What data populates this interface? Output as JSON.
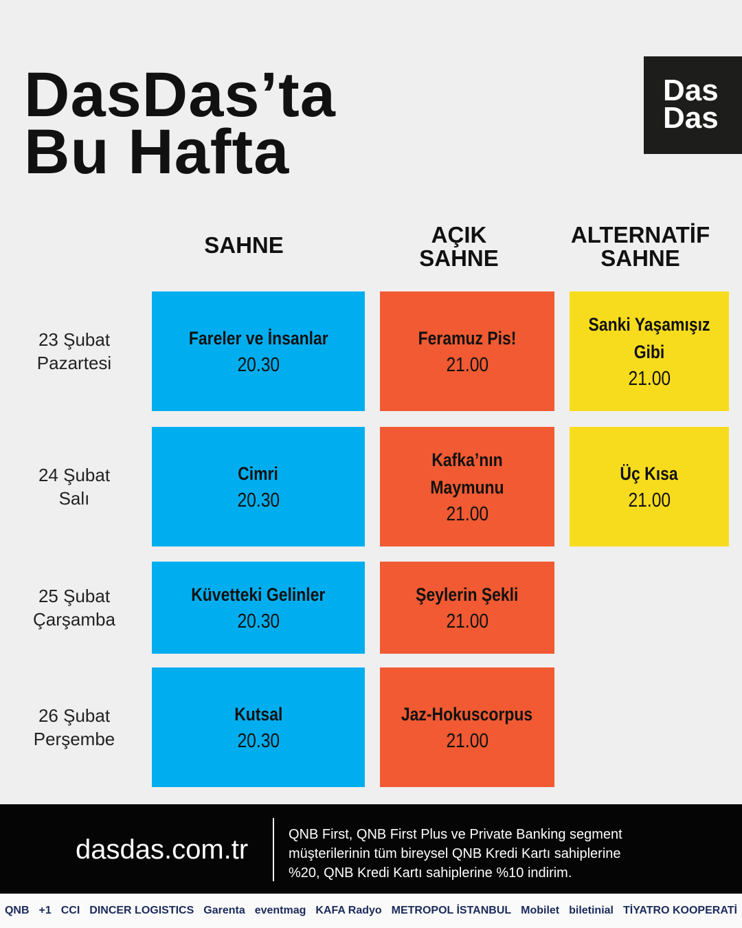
{
  "header": {
    "title": [
      "DasDas’ta",
      "Bu Hafta"
    ],
    "logo": [
      "Das",
      "Das"
    ]
  },
  "columns": [
    [
      "SAHNE"
    ],
    [
      "AÇIK",
      "SAHNE"
    ],
    [
      "ALTERNATİF",
      "SAHNE"
    ]
  ],
  "rows": [
    {
      "day": [
        "23 Şubat",
        "Pazartesi"
      ],
      "cells": [
        {
          "title": "Fareler ve İnsanlar",
          "time": "20.30"
        },
        {
          "title": "Feramuz Pis!",
          "time": "21.00"
        },
        {
          "title": "Sanki Yaşamışız Gibi",
          "time": "21.00"
        }
      ]
    },
    {
      "day": [
        "24 Şubat",
        "Salı"
      ],
      "cells": [
        {
          "title": "Cimri",
          "time": "20.30"
        },
        {
          "title": "Kafka’nın Maymunu",
          "time": "21.00"
        },
        {
          "title": "Üç Kısa",
          "time": "21.00"
        }
      ]
    },
    {
      "day": [
        "25 Şubat",
        "Çarşamba"
      ],
      "cells": [
        {
          "title": "Küvetteki Gelinler",
          "time": "20.30"
        },
        {
          "title": "Şeylerin Şekli",
          "time": "21.00"
        }
      ]
    },
    {
      "day": [
        "26 Şubat",
        "Perşembe"
      ],
      "cells": [
        {
          "title": "Kutsal",
          "time": "20.30"
        },
        {
          "title": "Jaz-Hokuscorpus",
          "time": "21.00"
        }
      ]
    }
  ],
  "footer": {
    "url": "dasdas.com.tr",
    "note": [
      "QNB First, QNB First Plus ve Private Banking segment",
      "müşterilerinin tüm bireysel QNB Kredi Kartı sahiplerine",
      "%20, QNB Kredi Kartı sahiplerine %10 indirim."
    ]
  },
  "sponsors": [
    "QNB",
    "+1",
    "CCI",
    "DINCER LOGISTICS",
    "Garenta",
    "eventmag",
    "KAFA Radyo",
    "METROPOL İSTANBUL",
    "Mobilet",
    "biletinial",
    "TİYATRO KOOPERATİ"
  ]
}
